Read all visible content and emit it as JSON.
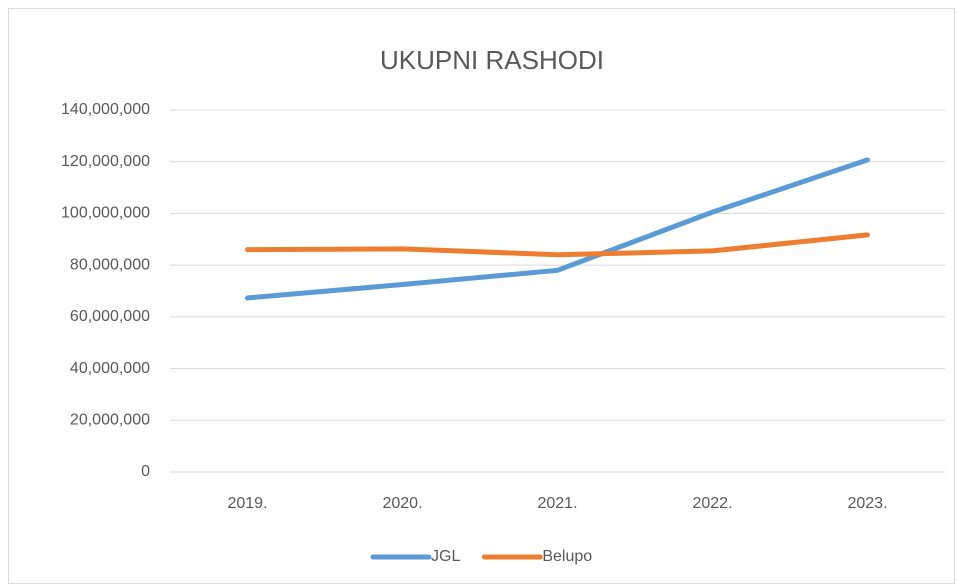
{
  "chart_data": {
    "type": "line",
    "title": "UKUPNI RASHODI",
    "categories": [
      "2019.",
      "2020.",
      "2021.",
      "2022.",
      "2023."
    ],
    "series": [
      {
        "name": "JGL",
        "color": "#5b9bd5",
        "values": [
          67300000,
          72500000,
          78000000,
          100500000,
          120700000
        ]
      },
      {
        "name": "Belupo",
        "color": "#ed7d31",
        "values": [
          86000000,
          86300000,
          84000000,
          85500000,
          91700000
        ]
      }
    ],
    "ylim": [
      0,
      140000000
    ],
    "yticks": [
      0,
      {
        "value": 20000000,
        "label": "20,000,000"
      },
      {
        "value": 40000000,
        "label": "40,000,000"
      },
      {
        "value": 60000000,
        "label": "60,000,000"
      },
      {
        "value": 80000000,
        "label": "80,000,000"
      },
      {
        "value": 100000000,
        "label": "100,000,000"
      },
      {
        "value": 120000000,
        "label": "120,000,000"
      },
      {
        "value": 140000000,
        "label": "140,000,000"
      }
    ],
    "grid": true,
    "legend": "bottom"
  }
}
